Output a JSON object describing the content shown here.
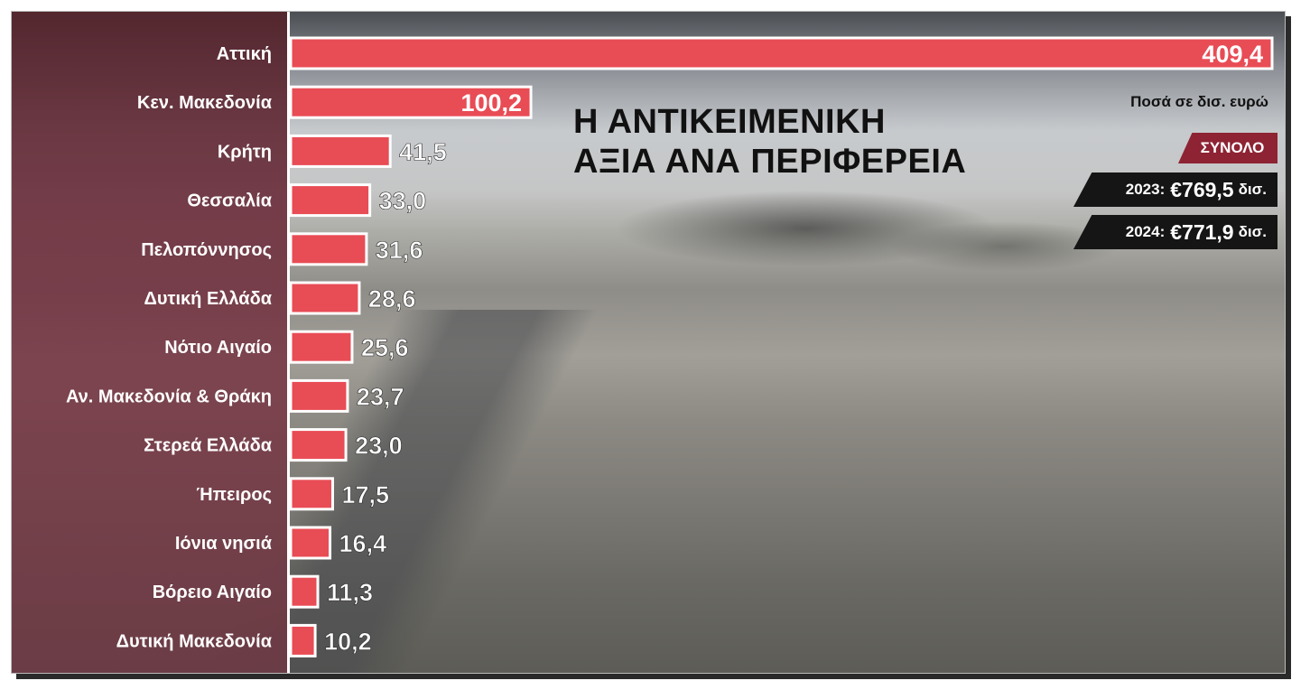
{
  "chart_data": {
    "type": "bar",
    "orientation": "horizontal",
    "title_lines": [
      "Η ΑΝΤΙΚΕΙΜΕΝΙΚΗ",
      "ΑΞΙΑ ΑΝΑ ΠΕΡΙΦΕΡΕΙΑ"
    ],
    "units_note": "Ποσά σε δισ. ευρώ",
    "categories": [
      "Αττική",
      "Κεν. Μακεδονία",
      "Κρήτη",
      "Θεσσαλία",
      "Πελοπόννησος",
      "Δυτική Ελλάδα",
      "Νότιο Αιγαίο",
      "Αν. Μακεδονία & Θράκη",
      "Στερεά Ελλάδα",
      "Ήπειρος",
      "Ιόνια νησιά",
      "Βόρειο Αιγαίο",
      "Δυτική Μακεδονία"
    ],
    "values": [
      409.4,
      100.2,
      41.5,
      33.0,
      31.6,
      28.6,
      25.6,
      23.7,
      23.0,
      17.5,
      16.4,
      11.3,
      10.2
    ],
    "value_labels": [
      "409,4",
      "100,2",
      "41,5",
      "33,0",
      "31,6",
      "28,6",
      "25,6",
      "23,7",
      "23,0",
      "17,5",
      "16,4",
      "11,3",
      "10,2"
    ],
    "xlim": [
      0,
      409.4
    ],
    "grid": false,
    "bar_color": "#e84c55"
  },
  "totals": {
    "label": "ΣΥΝΟΛΟ",
    "rows": [
      {
        "year": "2023:",
        "amount": "€769,5",
        "unit": "δισ."
      },
      {
        "year": "2024:",
        "amount": "€771,9",
        "unit": "δισ."
      }
    ]
  },
  "colors": {
    "bar": "#e84c55",
    "total_label_bg": "#8d2333",
    "total_row_bg": "#151515",
    "panel_overlay": "#6e3340"
  }
}
